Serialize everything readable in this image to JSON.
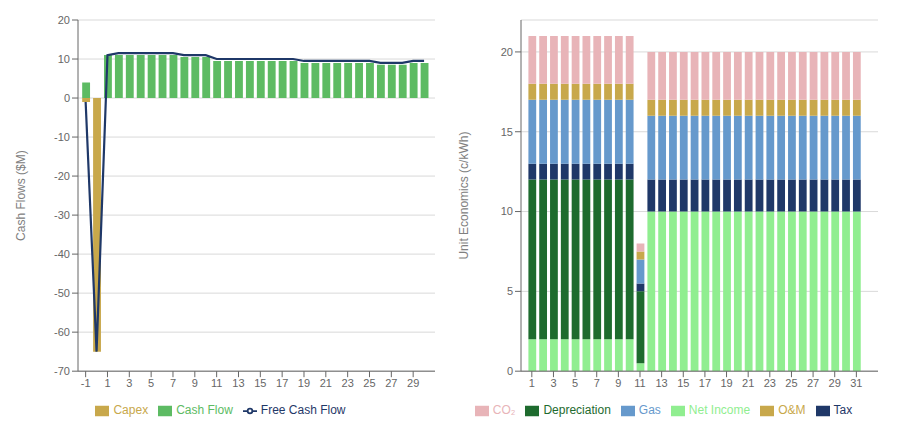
{
  "chart_data": [
    {
      "type": "bar",
      "y_label": "Cash Flows ($M)",
      "x": [
        -1,
        0,
        1,
        2,
        3,
        4,
        5,
        6,
        7,
        8,
        9,
        10,
        11,
        12,
        13,
        14,
        15,
        16,
        17,
        18,
        19,
        20,
        21,
        22,
        23,
        24,
        25,
        26,
        27,
        28,
        29,
        30
      ],
      "series": [
        {
          "name": "Capex",
          "type": "bar",
          "color": "#C8A84B",
          "values": [
            -1,
            -65,
            null,
            null,
            null,
            null,
            null,
            null,
            null,
            null,
            null,
            null,
            null,
            null,
            null,
            null,
            null,
            null,
            null,
            null,
            null,
            null,
            null,
            null,
            null,
            null,
            null,
            null,
            null,
            null,
            null,
            null
          ]
        },
        {
          "name": "Cash Flow",
          "type": "bar",
          "color": "#5DBB63",
          "values": [
            4,
            null,
            11,
            11,
            11,
            11,
            11,
            11,
            11,
            10.5,
            10.5,
            10.5,
            9.5,
            9.5,
            9.5,
            9.5,
            9.5,
            9.5,
            9.5,
            9.5,
            9,
            9,
            9,
            9,
            9,
            9,
            9,
            8.5,
            8.5,
            8.5,
            9,
            9
          ]
        },
        {
          "name": "Free Cash Flow",
          "type": "line",
          "color": "#1F3868",
          "values": [
            -1,
            -65,
            11,
            11.5,
            11.5,
            11.5,
            11.5,
            11.5,
            11.5,
            11,
            11,
            11,
            10,
            10,
            10,
            10,
            10,
            10,
            10,
            10,
            9.5,
            9.5,
            9.5,
            9.5,
            9.5,
            9.5,
            9.5,
            9,
            9,
            9,
            9.5,
            9.5
          ]
        }
      ],
      "xlim": [
        -1.7,
        31
      ],
      "xticks": [
        -1,
        1,
        3,
        5,
        7,
        9,
        11,
        13,
        15,
        17,
        19,
        21,
        23,
        25,
        27,
        29
      ],
      "ylim": [
        -70,
        20
      ],
      "yticks": [
        -70,
        -60,
        -50,
        -40,
        -30,
        -20,
        -10,
        0,
        10,
        20
      ],
      "grid": true,
      "legend": "bottom"
    },
    {
      "type": "bar",
      "y_label": "Unit Economics (c/kWh)",
      "stacked": true,
      "x": [
        1,
        2,
        3,
        4,
        5,
        6,
        7,
        8,
        9,
        10,
        11,
        12,
        13,
        14,
        15,
        16,
        17,
        18,
        19,
        20,
        21,
        22,
        23,
        24,
        25,
        26,
        27,
        28,
        29,
        30,
        31
      ],
      "series": [
        {
          "name": "Net Income",
          "color": "#90EE90",
          "values": [
            2.0,
            2.0,
            2.0,
            2.0,
            2.0,
            2.0,
            2.0,
            2.0,
            2.0,
            2.0,
            0.5,
            10.0,
            10.0,
            10.0,
            10.0,
            10.0,
            10.0,
            10.0,
            10.0,
            10.0,
            10.0,
            10.0,
            10.0,
            10.0,
            10.0,
            10.0,
            10.0,
            10.0,
            10.0,
            10.0,
            10.0
          ]
        },
        {
          "name": "Depreciation",
          "color": "#1E6B2E",
          "values": [
            10.0,
            10.0,
            10.0,
            10.0,
            10.0,
            10.0,
            10.0,
            10.0,
            10.0,
            10.0,
            4.5,
            0.0,
            0.0,
            0.0,
            0.0,
            0.0,
            0.0,
            0.0,
            0.0,
            0.0,
            0.0,
            0.0,
            0.0,
            0.0,
            0.0,
            0.0,
            0.0,
            0.0,
            0.0,
            0.0,
            0.0
          ]
        },
        {
          "name": "Tax",
          "color": "#1F3868",
          "values": [
            1.0,
            1.0,
            1.0,
            1.0,
            1.0,
            1.0,
            1.0,
            1.0,
            1.0,
            1.0,
            0.5,
            2.0,
            2.0,
            2.0,
            2.0,
            2.0,
            2.0,
            2.0,
            2.0,
            2.0,
            2.0,
            2.0,
            2.0,
            2.0,
            2.0,
            2.0,
            2.0,
            2.0,
            2.0,
            2.0,
            2.0
          ]
        },
        {
          "name": "Gas",
          "color": "#6699CC",
          "values": [
            4.0,
            4.0,
            4.0,
            4.0,
            4.0,
            4.0,
            4.0,
            4.0,
            4.0,
            4.0,
            1.5,
            4.0,
            4.0,
            4.0,
            4.0,
            4.0,
            4.0,
            4.0,
            4.0,
            4.0,
            4.0,
            4.0,
            4.0,
            4.0,
            4.0,
            4.0,
            4.0,
            4.0,
            4.0,
            4.0,
            4.0
          ]
        },
        {
          "name": "O&M",
          "color": "#C8A84B",
          "values": [
            1.0,
            1.0,
            1.0,
            1.0,
            1.0,
            1.0,
            1.0,
            1.0,
            1.0,
            1.0,
            0.5,
            1.0,
            1.0,
            1.0,
            1.0,
            1.0,
            1.0,
            1.0,
            1.0,
            1.0,
            1.0,
            1.0,
            1.0,
            1.0,
            1.0,
            1.0,
            1.0,
            1.0,
            1.0,
            1.0,
            1.0
          ]
        },
        {
          "name": "CO₂",
          "color": "#E8B4B8",
          "values": [
            3.0,
            3.0,
            3.0,
            3.0,
            3.0,
            3.0,
            3.0,
            3.0,
            3.0,
            3.0,
            0.5,
            3.0,
            3.0,
            3.0,
            3.0,
            3.0,
            3.0,
            3.0,
            3.0,
            3.0,
            3.0,
            3.0,
            3.0,
            3.0,
            3.0,
            3.0,
            3.0,
            3.0,
            3.0,
            3.0,
            3.0
          ]
        }
      ],
      "xlim": [
        0,
        33
      ],
      "xticks": [
        1,
        3,
        5,
        7,
        9,
        11,
        13,
        15,
        17,
        19,
        21,
        23,
        25,
        27,
        29,
        31
      ],
      "ylim": [
        0,
        22
      ],
      "yticks": [
        0,
        5,
        10,
        15,
        20
      ],
      "grid": true,
      "legend": "bottom"
    }
  ]
}
